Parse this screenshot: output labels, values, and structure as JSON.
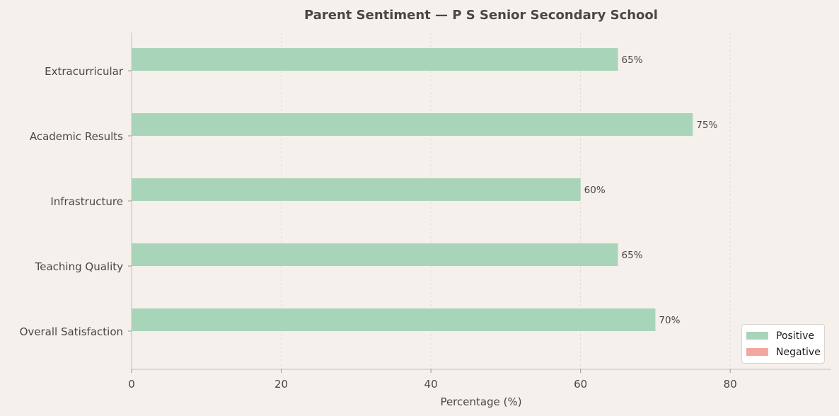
{
  "chart_data": {
    "type": "bar",
    "orientation": "horizontal",
    "title": "Parent Sentiment — P S Senior Secondary School",
    "xlabel": "Percentage (%)",
    "ylabel": "",
    "categories": [
      "Overall Satisfaction",
      "Teaching Quality",
      "Infrastructure",
      "Academic Results",
      "Extracurricular"
    ],
    "series": [
      {
        "name": "Positive",
        "values": [
          70,
          65,
          60,
          75,
          65
        ],
        "color": "#a8d5ba"
      },
      {
        "name": "Negative",
        "values": [
          0,
          0,
          0,
          0,
          0
        ],
        "color": "#f4a7a0"
      }
    ],
    "data_labels": [
      "70%",
      "65%",
      "60%",
      "75%",
      "65%"
    ],
    "xlim": [
      0,
      93.5
    ],
    "xticks": [
      0,
      20,
      40,
      60,
      80
    ],
    "grid": "vertical dashed",
    "legend_position": "lower-right"
  }
}
